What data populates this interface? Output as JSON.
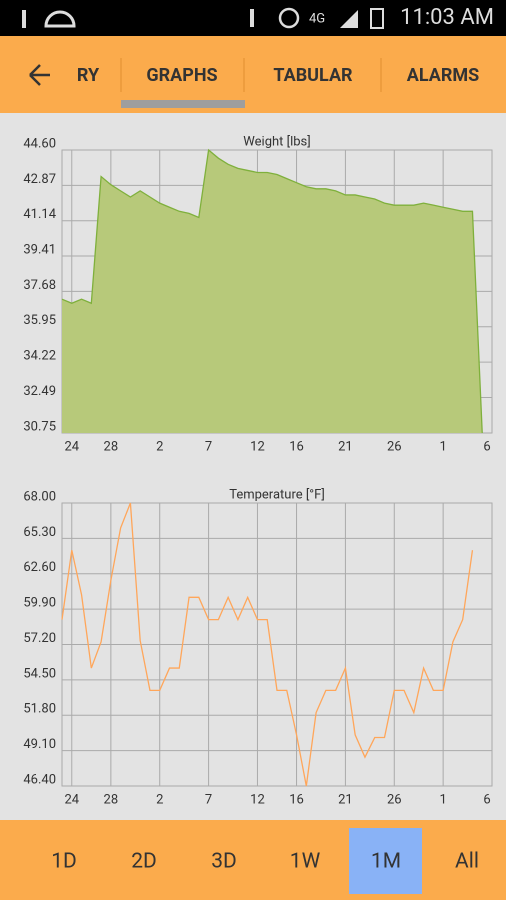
{
  "status_bar": {
    "time": "11:03 AM"
  },
  "tabs": [
    "RY",
    "GRAPHS",
    "TABULAR",
    "ALARMS"
  ],
  "range_buttons": [
    "1D",
    "2D",
    "3D",
    "1W",
    "1M",
    "All"
  ],
  "chart_data": [
    {
      "type": "area",
      "title": "Weight [lbs]",
      "categories": [
        null,
        "24",
        null,
        null,
        null,
        "28",
        null,
        null,
        null,
        null,
        "2",
        null,
        null,
        null,
        null,
        "7",
        null,
        null,
        null,
        null,
        "12",
        null,
        null,
        null,
        "16",
        null,
        null,
        null,
        null,
        "21",
        null,
        null,
        null,
        null,
        "26",
        null,
        null,
        null,
        null,
        "1",
        null,
        null,
        null,
        null,
        "6"
      ],
      "values": [
        37.3,
        37.1,
        37.3,
        37.1,
        43.3,
        42.9,
        42.6,
        42.3,
        42.6,
        42.3,
        42.0,
        41.8,
        41.6,
        41.5,
        41.3,
        44.6,
        44.2,
        43.9,
        43.7,
        43.6,
        43.5,
        43.5,
        43.4,
        43.2,
        43.0,
        42.8,
        42.7,
        42.7,
        42.6,
        42.4,
        42.4,
        42.3,
        42.2,
        42.0,
        41.9,
        41.9,
        41.9,
        42.0,
        41.9,
        41.8,
        41.7,
        41.6,
        41.6,
        30.75,
        null
      ],
      "color": "#7fb03c",
      "fill": "#b7c97a",
      "ylim": [
        30.75,
        44.6
      ],
      "yticks": [
        {
          "value": 30.75,
          "label": "30.75"
        },
        {
          "value": 32.49,
          "label": "32.49"
        },
        {
          "value": 34.22,
          "label": "34.22"
        },
        {
          "value": 35.95,
          "label": "35.95"
        },
        {
          "value": 37.68,
          "label": "37.68"
        },
        {
          "value": 39.41,
          "label": "39.41"
        },
        {
          "value": 41.14,
          "label": "41.14"
        },
        {
          "value": 42.87,
          "label": "42.87"
        },
        {
          "value": 44.6,
          "label": "44.60"
        }
      ],
      "grid": true
    },
    {
      "type": "line",
      "title": "Temperature [°F]",
      "categories": [
        null,
        "24",
        null,
        null,
        null,
        "28",
        null,
        null,
        null,
        null,
        "2",
        null,
        null,
        null,
        null,
        "7",
        null,
        null,
        null,
        null,
        "12",
        null,
        null,
        null,
        "16",
        null,
        null,
        null,
        null,
        "21",
        null,
        null,
        null,
        null,
        "26",
        null,
        null,
        null,
        null,
        "1",
        null,
        null,
        null,
        null,
        "6"
      ],
      "values": [
        59.1,
        64.4,
        61.0,
        55.4,
        57.4,
        62.1,
        66.1,
        68.0,
        57.5,
        53.7,
        53.7,
        55.4,
        55.4,
        60.8,
        60.8,
        59.1,
        59.1,
        60.8,
        59.1,
        60.8,
        59.1,
        59.1,
        53.7,
        53.7,
        50.3,
        46.4,
        52.0,
        53.7,
        53.7,
        55.4,
        50.3,
        48.6,
        50.1,
        50.1,
        53.7,
        53.7,
        52.0,
        55.4,
        53.7,
        53.7,
        57.4,
        59.1,
        64.4,
        null,
        null
      ],
      "color": "#ffa65a",
      "ylim": [
        46.4,
        68.0
      ],
      "yticks": [
        {
          "value": 46.4,
          "label": "46.40"
        },
        {
          "value": 49.1,
          "label": "49.10"
        },
        {
          "value": 51.8,
          "label": "51.80"
        },
        {
          "value": 54.5,
          "label": "54.50"
        },
        {
          "value": 57.2,
          "label": "57.20"
        },
        {
          "value": 59.9,
          "label": "59.90"
        },
        {
          "value": 62.6,
          "label": "62.60"
        },
        {
          "value": 65.3,
          "label": "65.30"
        },
        {
          "value": 68.0,
          "label": "68.00"
        }
      ],
      "grid": true
    }
  ]
}
